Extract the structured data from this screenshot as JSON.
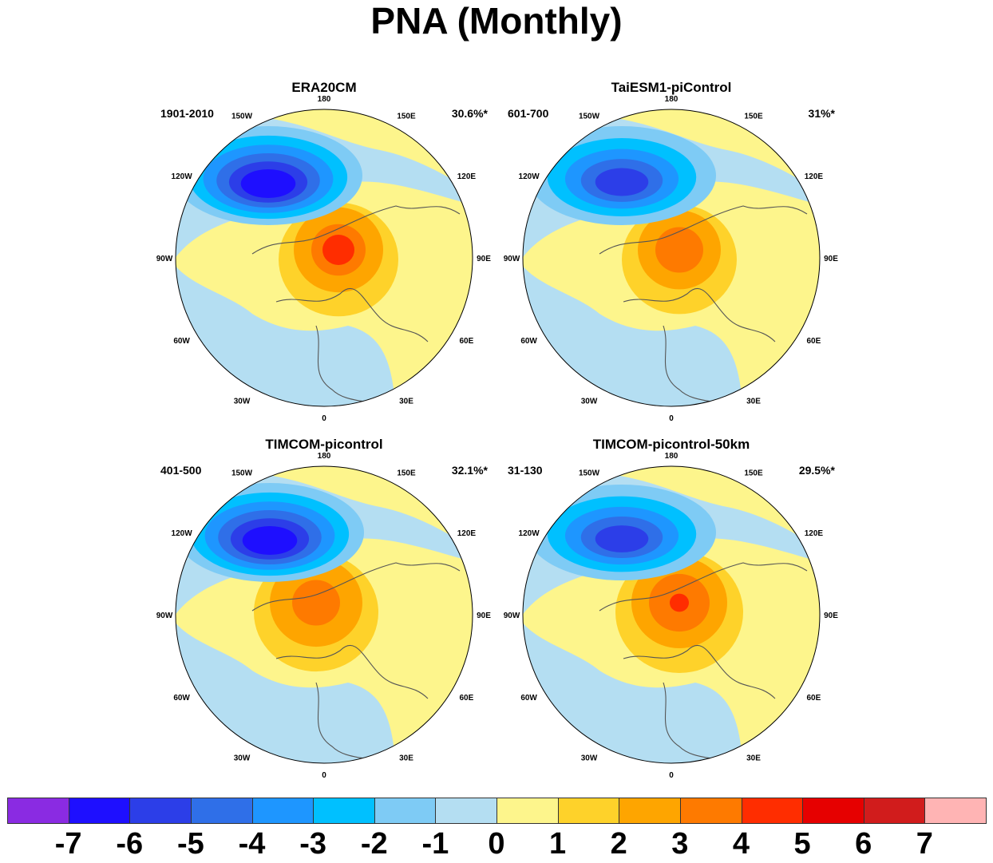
{
  "title": "PNA (Monthly)",
  "panels": [
    {
      "name": "ERA20CM",
      "years": "1901-2010",
      "percent": "30.6%*"
    },
    {
      "name": "TaiESM1-piControl",
      "years": "601-700",
      "percent": "31%*"
    },
    {
      "name": "TIMCOM-picontrol",
      "years": "401-500",
      "percent": "32.1%*"
    },
    {
      "name": "TIMCOM-picontrol-50km",
      "years": "31-130",
      "percent": "29.5%*"
    }
  ],
  "lon_labels": [
    "180",
    "150E",
    "120E",
    "90E",
    "60E",
    "30E",
    "0",
    "30W",
    "60W",
    "90W",
    "120W",
    "150W"
  ],
  "colorbar": {
    "colors": [
      "#8a2be2",
      "#1e0fff",
      "#2c3ee8",
      "#2f6fe8",
      "#1e96ff",
      "#00c0ff",
      "#7ecbf5",
      "#b4def2",
      "#fdf58c",
      "#fed22a",
      "#fea500",
      "#fe7a00",
      "#ff2d00",
      "#e60000",
      "#d11c1c",
      "#ffb4b4"
    ],
    "labels": [
      "-7",
      "-6",
      "-5",
      "-4",
      "-3",
      "-2",
      "-1",
      "0",
      "1",
      "2",
      "3",
      "4",
      "5",
      "6",
      "7"
    ]
  }
}
